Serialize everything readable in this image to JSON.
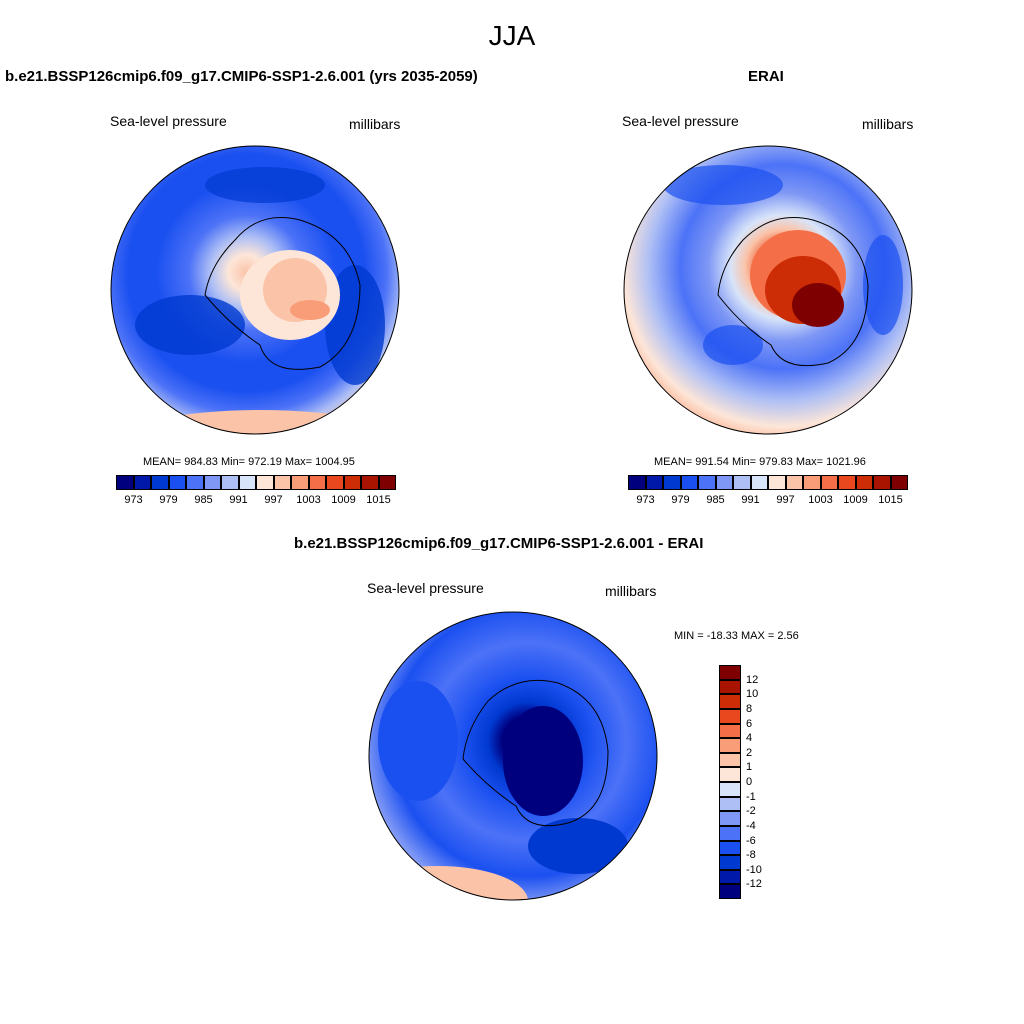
{
  "page": {
    "title": "JJA"
  },
  "panels": [
    {
      "title": "b.e21.BSSP126cmip6.f09_g17.CMIP6-SSP1-2.6.001 (yrs 2035-2059)",
      "field": "Sea-level pressure",
      "units": "millibars",
      "stats": "MEAN= 984.83  Min= 972.19  Max= 1004.95"
    },
    {
      "title": "ERAI",
      "field": "Sea-level pressure",
      "units": "millibars",
      "stats": "MEAN= 991.54  Min= 979.83  Max= 1021.96"
    },
    {
      "title": "b.e21.BSSP126cmip6.f09_g17.CMIP6-SSP1-2.6.001 - ERAI",
      "field": "Sea-level pressure",
      "units": "millibars",
      "stats": "MIN = -18.33 MAX =   2.56"
    }
  ],
  "colorbar_abs": {
    "colors": [
      "#00007f",
      "#0019a8",
      "#0039d0",
      "#1b50f0",
      "#4c72f7",
      "#7f98f5",
      "#aebff5",
      "#d8e4f9",
      "#fde6d8",
      "#fbc3a8",
      "#f89d77",
      "#f46f47",
      "#e9471e",
      "#cc2c06",
      "#a81400",
      "#7f0000"
    ],
    "tick_labels": [
      "973",
      "979",
      "985",
      "991",
      "997",
      "1003",
      "1009",
      "1015"
    ]
  },
  "colorbar_diff": {
    "colors": [
      "#00007f",
      "#0019a8",
      "#0039d0",
      "#1b50f0",
      "#4c72f7",
      "#7f98f5",
      "#aebff5",
      "#d8e4f9",
      "#fde6d8",
      "#fbc3a8",
      "#f89d77",
      "#f46f47",
      "#e9471e",
      "#cc2c06",
      "#a81400",
      "#7f0000"
    ],
    "tick_labels": [
      "-12",
      "-10",
      "-8",
      "-6",
      "-4",
      "-2",
      "-1",
      "0",
      "1",
      "2",
      "4",
      "6",
      "8",
      "10",
      "12"
    ]
  }
}
